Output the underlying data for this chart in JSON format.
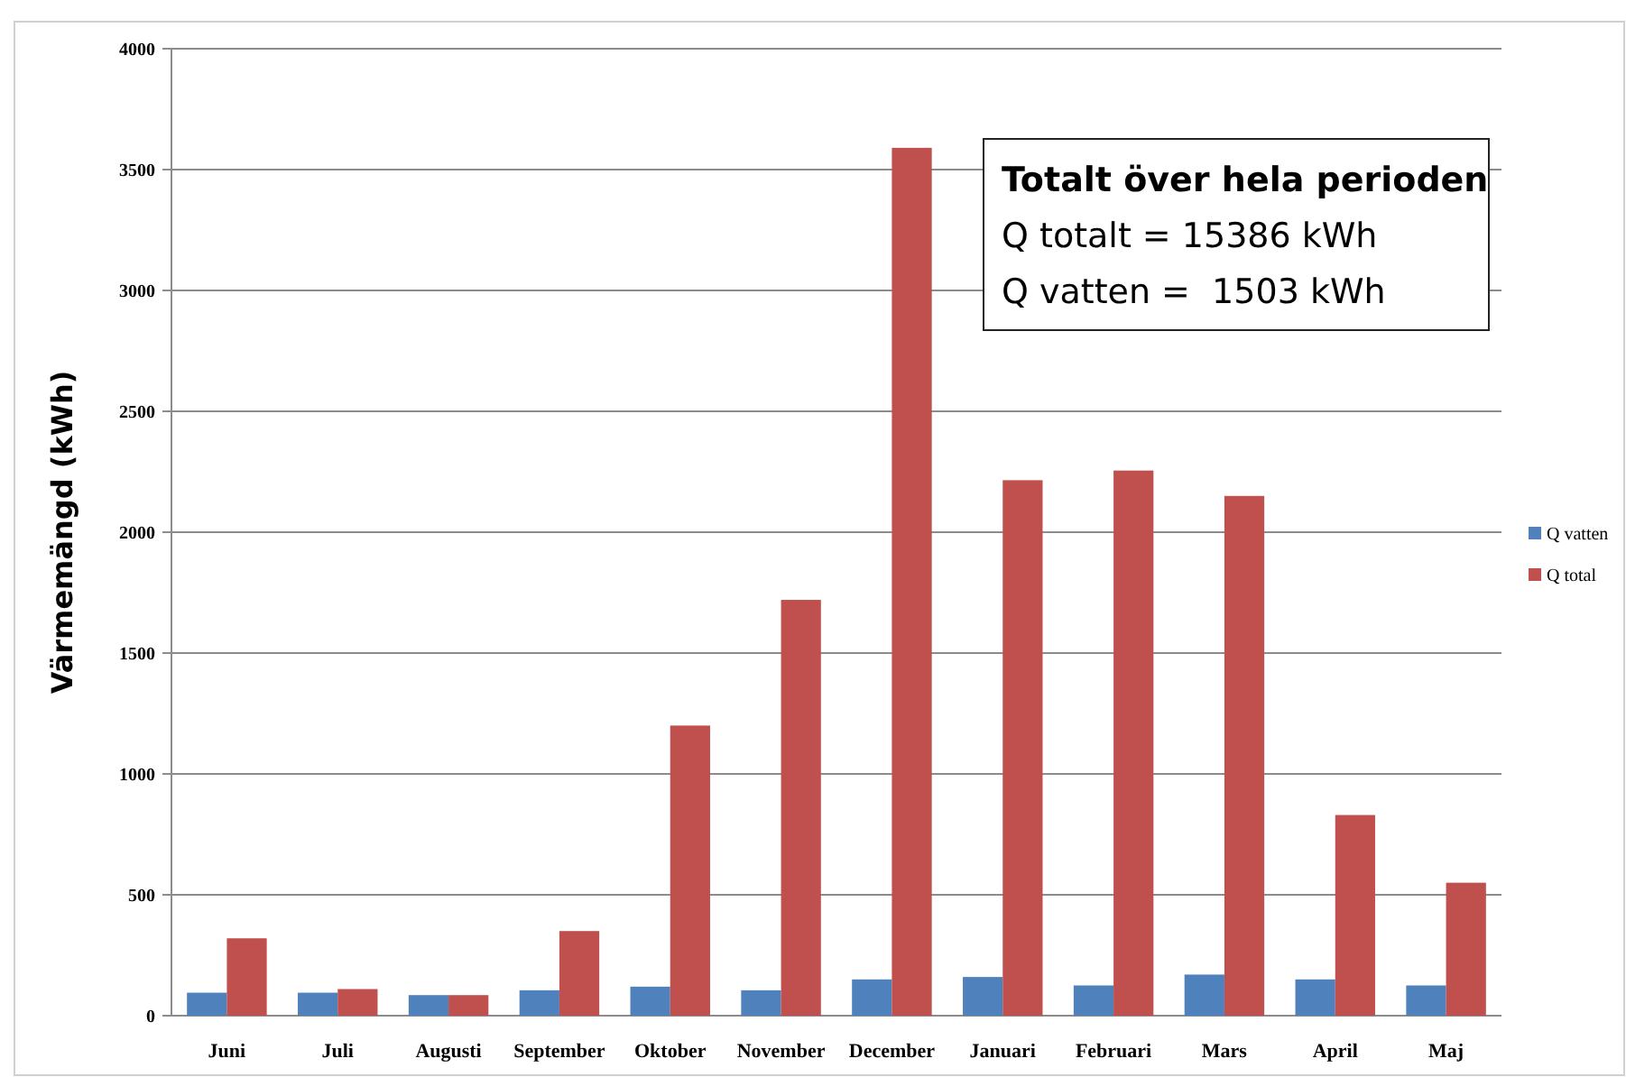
{
  "chart_data": {
    "type": "bar",
    "ylabel": "Värmemängd (kWh)",
    "categories": [
      "Juni",
      "Juli",
      "Augusti",
      "September",
      "Oktober",
      "November",
      "December",
      "Januari",
      "Februari",
      "Mars",
      "April",
      "Maj"
    ],
    "series": [
      {
        "name": "Q vatten",
        "color": "#4f81bd",
        "values": [
          95,
          95,
          85,
          105,
          120,
          105,
          150,
          160,
          125,
          170,
          150,
          125
        ]
      },
      {
        "name": "Q total",
        "color": "#c0504d",
        "values": [
          320,
          110,
          85,
          350,
          1200,
          1720,
          3590,
          2215,
          2255,
          2150,
          830,
          550
        ]
      }
    ],
    "ylim": [
      0,
      4000
    ],
    "yticks": [
      0,
      500,
      1000,
      1500,
      2000,
      2500,
      3000,
      3500,
      4000
    ],
    "grid": "y",
    "legend": "right",
    "annotations": [
      "Totalt över hela perioden",
      "Q totalt = 15386 kWh",
      "Q vatten =  1503 kWh"
    ]
  }
}
